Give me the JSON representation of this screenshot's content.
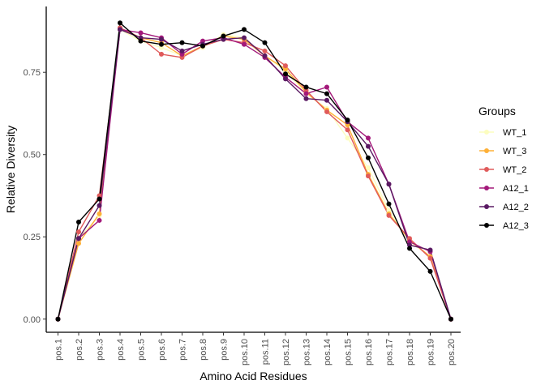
{
  "chart_data": {
    "type": "line",
    "xlabel": "Amino Acid Residues",
    "ylabel": "Relative Diversity",
    "categories": [
      "pos.1",
      "pos.2",
      "pos.3",
      "pos.4",
      "pos.5",
      "pos.6",
      "pos.7",
      "pos.8",
      "pos.9",
      "pos.10",
      "pos.11",
      "pos.12",
      "pos.13",
      "pos.14",
      "pos.15",
      "pos.16",
      "pos.17",
      "pos.18",
      "pos.19",
      "pos.20"
    ],
    "ylim": [
      -0.04,
      0.95
    ],
    "yticks": [
      0.0,
      0.25,
      0.5,
      0.75
    ],
    "ytick_labels": [
      "0.00",
      "0.25",
      "0.50",
      "0.75"
    ],
    "legend": {
      "title": "Groups",
      "position": "right"
    },
    "grid": false,
    "series": [
      {
        "name": "WT_1",
        "color": "#fcfdbf",
        "values": [
          0,
          0.245,
          0.315,
          0.88,
          0.845,
          0.825,
          0.8,
          0.825,
          0.865,
          0.855,
          0.8,
          0.755,
          0.685,
          0.64,
          0.55,
          0.46,
          0.33,
          0.235,
          0.19,
          0
        ]
      },
      {
        "name": "WT_3",
        "color": "#feb037",
        "values": [
          0,
          0.23,
          0.32,
          0.885,
          0.855,
          0.84,
          0.8,
          0.83,
          0.86,
          0.85,
          0.8,
          0.76,
          0.69,
          0.635,
          0.59,
          0.44,
          0.32,
          0.24,
          0.19,
          0
        ]
      },
      {
        "name": "WT_2",
        "color": "#e05b5b",
        "values": [
          0,
          0.265,
          0.375,
          0.885,
          0.855,
          0.805,
          0.795,
          0.83,
          0.85,
          0.84,
          0.815,
          0.77,
          0.695,
          0.63,
          0.575,
          0.435,
          0.315,
          0.245,
          0.185,
          0
        ]
      },
      {
        "name": "A12_1",
        "color": "#a3197a",
        "values": [
          0,
          0.245,
          0.3,
          0.88,
          0.87,
          0.855,
          0.805,
          0.845,
          0.855,
          0.835,
          0.795,
          0.735,
          0.685,
          0.705,
          0.6,
          0.55,
          0.41,
          0.235,
          0.205,
          0
        ]
      },
      {
        "name": "A12_2",
        "color": "#5a1a63",
        "values": [
          0,
          0.245,
          0.345,
          0.88,
          0.855,
          0.85,
          0.815,
          0.835,
          0.85,
          0.855,
          0.8,
          0.73,
          0.67,
          0.665,
          0.6,
          0.525,
          0.41,
          0.225,
          0.21,
          0
        ]
      },
      {
        "name": "A12_3",
        "color": "#000000",
        "values": [
          0,
          0.295,
          0.365,
          0.9,
          0.845,
          0.835,
          0.84,
          0.83,
          0.86,
          0.88,
          0.84,
          0.745,
          0.705,
          0.685,
          0.605,
          0.49,
          0.35,
          0.215,
          0.145,
          0
        ]
      }
    ]
  }
}
